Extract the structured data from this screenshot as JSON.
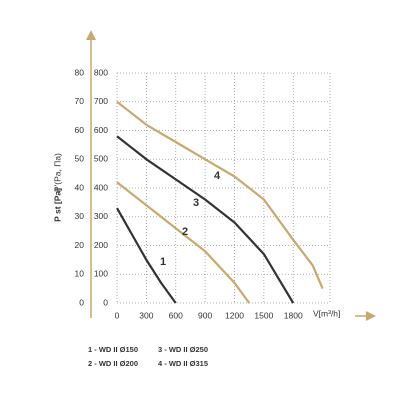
{
  "chart_data": {
    "type": "line",
    "x_label": "V[m³/h]",
    "y_label": "P st [Pa]",
    "y2_label": "P'(Pa, Па)",
    "xlim": [
      0,
      2100
    ],
    "xticks": [
      0,
      300,
      600,
      900,
      1200,
      1500,
      1800
    ],
    "ylim": [
      0,
      800
    ],
    "yticks": [
      0,
      100,
      200,
      300,
      400,
      500,
      600,
      700,
      800
    ],
    "y2lim": [
      0,
      80
    ],
    "y2ticks": [
      0,
      10,
      20,
      30,
      40,
      50,
      60,
      70,
      80
    ],
    "grid": true,
    "series": [
      {
        "name": "1 - WD II Ø150",
        "label": "1",
        "color": "#333333",
        "x": [
          0,
          150,
          300,
          450,
          600
        ],
        "values": [
          330,
          240,
          150,
          70,
          0
        ]
      },
      {
        "name": "2 - WD II Ø200",
        "label": "2",
        "color": "#c9a96b",
        "x": [
          0,
          300,
          600,
          900,
          1200,
          1350
        ],
        "values": [
          420,
          340,
          260,
          180,
          70,
          0
        ]
      },
      {
        "name": "3 - WD II Ø250",
        "label": "3",
        "color": "#333333",
        "x": [
          0,
          300,
          600,
          900,
          1200,
          1500,
          1800
        ],
        "values": [
          580,
          500,
          430,
          360,
          280,
          170,
          0
        ]
      },
      {
        "name": "4 - WD II Ø315",
        "label": "4",
        "color": "#c9a96b",
        "x": [
          0,
          300,
          600,
          900,
          1200,
          1500,
          1800,
          2000,
          2100
        ],
        "values": [
          700,
          620,
          560,
          500,
          440,
          360,
          220,
          130,
          50
        ]
      }
    ]
  }
}
